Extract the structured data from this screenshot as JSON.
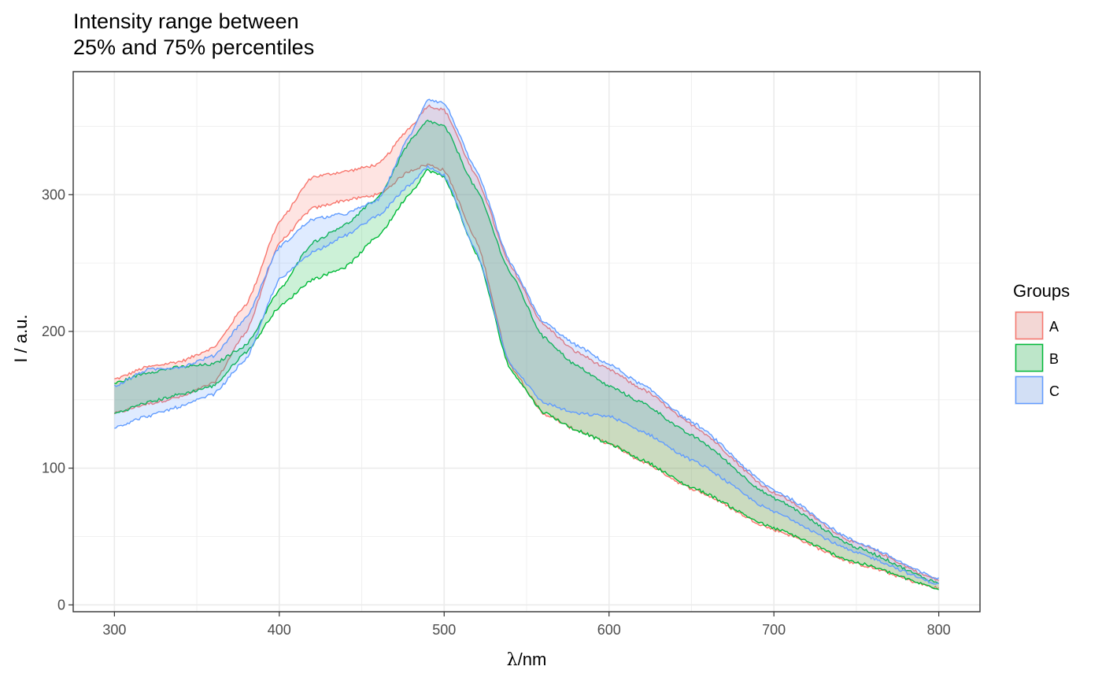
{
  "chart_data": {
    "type": "area",
    "title_lines": [
      "Intensity range between",
      "25% and 75% percentiles"
    ],
    "xlabel_symbol": "λ",
    "xlabel_unit": "/nm",
    "ylabel": "I / a.u.",
    "xlim": [
      275,
      825
    ],
    "ylim": [
      -5,
      390
    ],
    "x_ticks": [
      300,
      400,
      500,
      600,
      700,
      800
    ],
    "y_ticks": [
      0,
      100,
      200,
      300
    ],
    "grid": true,
    "legend_title": "Groups",
    "legend_position": "right",
    "series": [
      {
        "name": "A",
        "color": "#F8766D",
        "x": [
          300,
          320,
          340,
          360,
          380,
          400,
          420,
          440,
          460,
          480,
          490,
          500,
          520,
          540,
          560,
          580,
          600,
          620,
          650,
          700,
          750,
          800
        ],
        "upper": [
          165,
          174,
          178,
          188,
          220,
          280,
          313,
          317,
          322,
          350,
          365,
          362,
          312,
          248,
          205,
          185,
          172,
          158,
          132,
          82,
          45,
          18
        ],
        "lower": [
          140,
          147,
          152,
          162,
          200,
          265,
          290,
          296,
          300,
          318,
          322,
          318,
          265,
          175,
          140,
          128,
          118,
          105,
          85,
          55,
          30,
          12
        ]
      },
      {
        "name": "B",
        "color": "#00BA38",
        "x": [
          300,
          320,
          340,
          360,
          380,
          400,
          420,
          440,
          460,
          480,
          490,
          500,
          520,
          540,
          560,
          580,
          600,
          620,
          650,
          700,
          750,
          800
        ],
        "upper": [
          162,
          170,
          174,
          176,
          190,
          230,
          265,
          278,
          298,
          340,
          354,
          350,
          303,
          243,
          196,
          175,
          160,
          148,
          124,
          78,
          42,
          16
        ],
        "lower": [
          140,
          148,
          154,
          160,
          185,
          218,
          238,
          247,
          270,
          302,
          318,
          313,
          256,
          172,
          141,
          128,
          118,
          106,
          86,
          56,
          31,
          12
        ]
      },
      {
        "name": "C",
        "color": "#619CFF",
        "x": [
          300,
          320,
          340,
          360,
          380,
          400,
          420,
          440,
          460,
          480,
          490,
          500,
          520,
          540,
          560,
          580,
          600,
          620,
          650,
          700,
          750,
          800
        ],
        "upper": [
          160,
          172,
          174,
          182,
          210,
          262,
          282,
          286,
          296,
          345,
          370,
          367,
          316,
          250,
          207,
          190,
          176,
          161,
          134,
          84,
          46,
          19
        ],
        "lower": [
          130,
          138,
          145,
          154,
          180,
          238,
          258,
          270,
          285,
          308,
          320,
          314,
          257,
          176,
          148,
          140,
          138,
          127,
          106,
          68,
          38,
          15
        ]
      }
    ]
  }
}
